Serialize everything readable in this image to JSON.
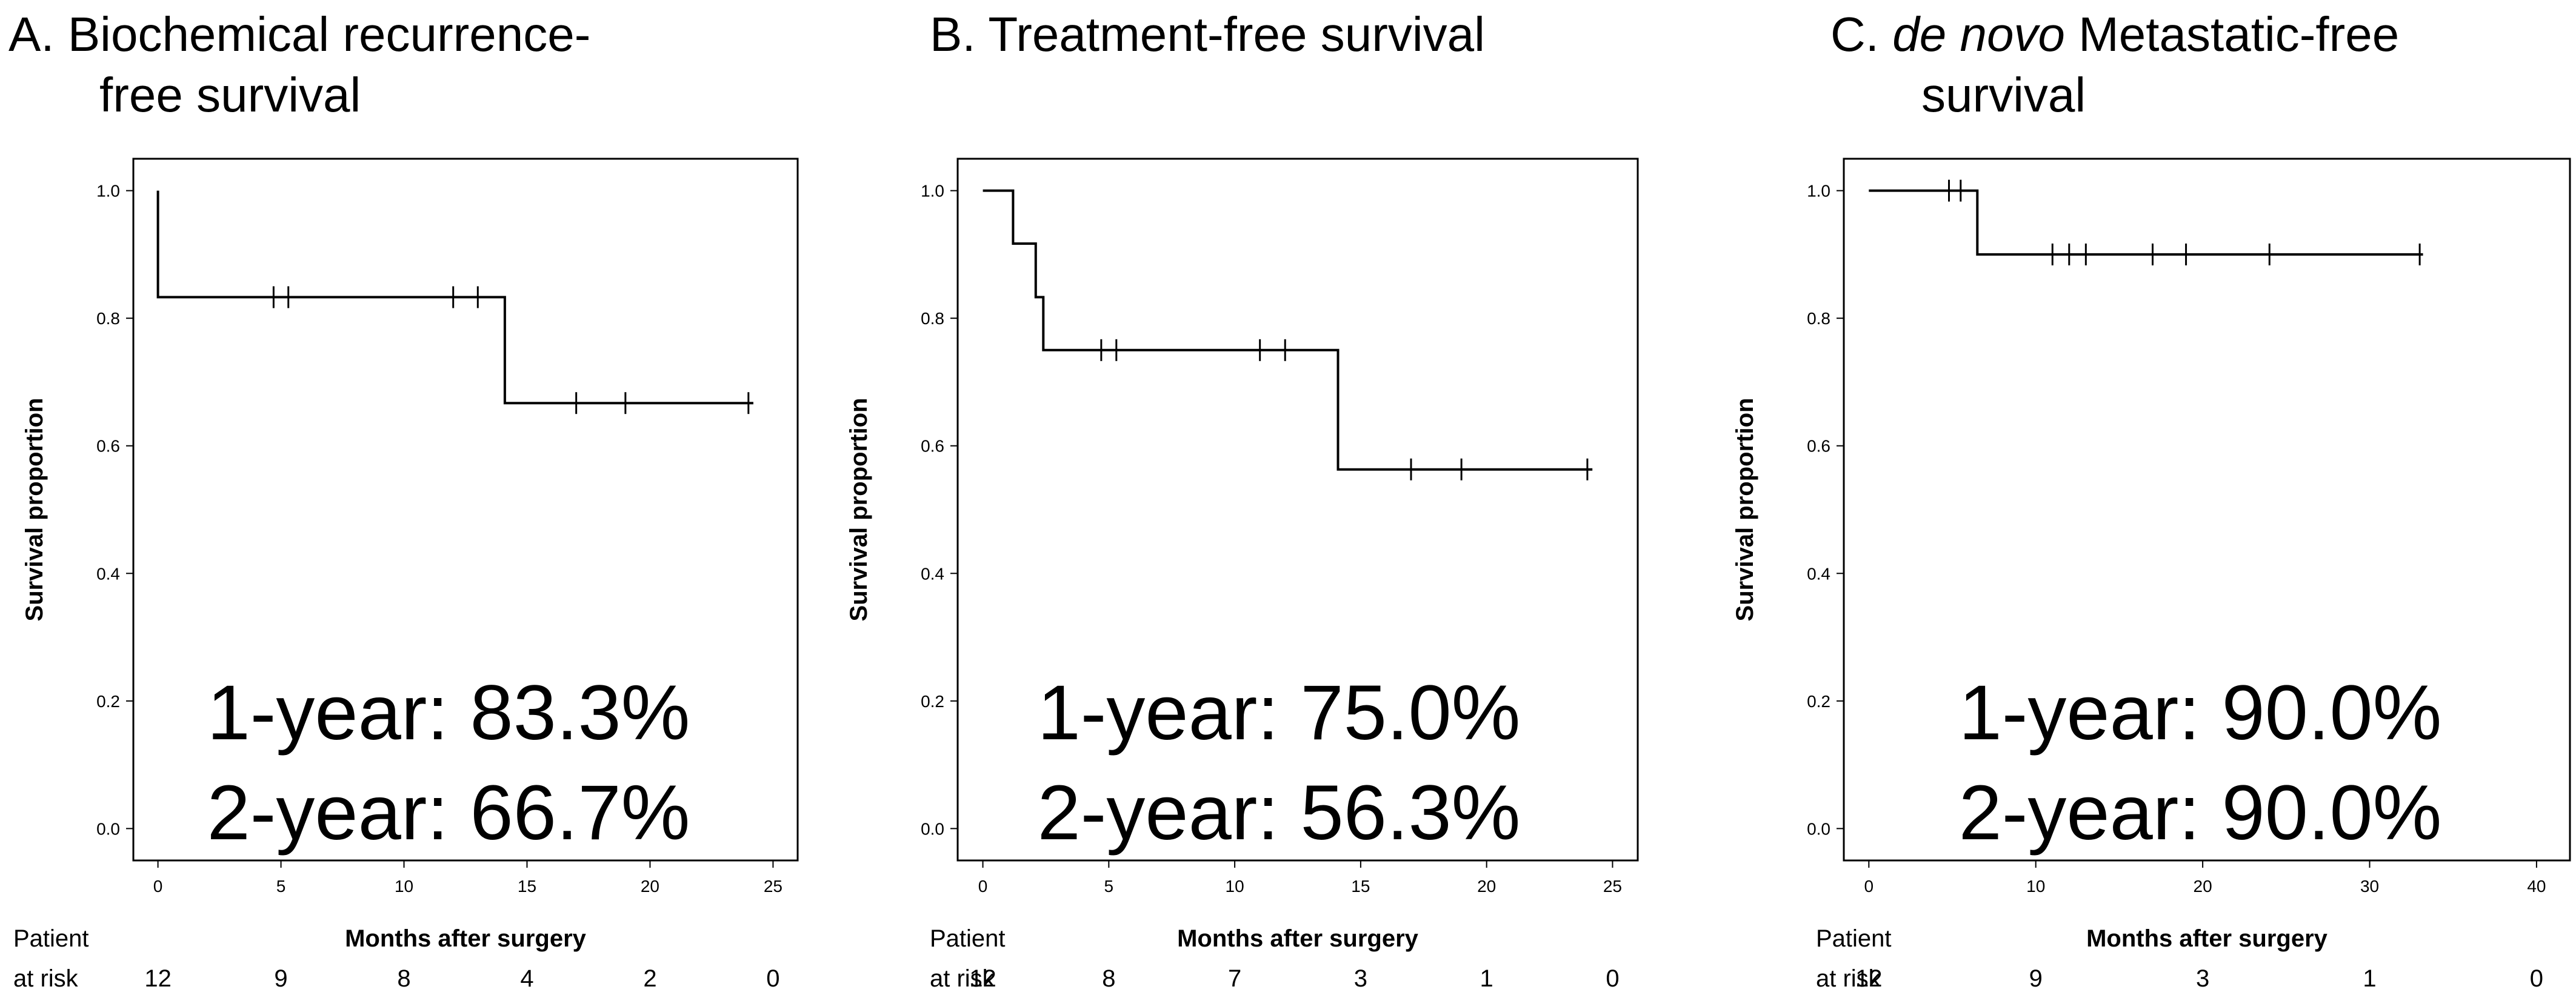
{
  "chart_data": [
    {
      "type": "line",
      "subtype": "kaplan-meier",
      "panel_label": "A.",
      "title_lines": [
        "Biochemical recurrence-",
        "free survival"
      ],
      "title_italic": "",
      "ylabel": "Survival proportion",
      "xlabel": "Months after surgery",
      "xlim": [
        -1,
        26
      ],
      "ylim": [
        -0.05,
        1.05
      ],
      "xticks": [
        0,
        5,
        10,
        15,
        20,
        25
      ],
      "xtick_labels": [
        "0",
        "5",
        "10",
        "15",
        "20",
        "25"
      ],
      "yticks": [
        0,
        0.2,
        0.4,
        0.6,
        0.8,
        1.0
      ],
      "ytick_labels": [
        "0.0",
        "0.2",
        "0.4",
        "0.6",
        "0.8",
        "1.0"
      ],
      "steps": [
        {
          "x": 0,
          "y": 1.0
        },
        {
          "x": 0,
          "y": 0.833
        },
        {
          "x": 14.1,
          "y": 0.833
        },
        {
          "x": 14.1,
          "y": 0.667
        },
        {
          "x": 24.2,
          "y": 0.667
        }
      ],
      "censored": [
        {
          "x": 4.7,
          "y": 0.833
        },
        {
          "x": 5.3,
          "y": 0.833
        },
        {
          "x": 12.0,
          "y": 0.833
        },
        {
          "x": 13.0,
          "y": 0.833
        },
        {
          "x": 17.0,
          "y": 0.667
        },
        {
          "x": 19.0,
          "y": 0.667
        },
        {
          "x": 24.0,
          "y": 0.667
        }
      ],
      "annotations": [
        "1-year: 83.3%",
        "2-year: 66.7%"
      ],
      "risk_header": [
        "Patient",
        "at risk"
      ],
      "at_risk": [
        "12",
        "9",
        "8",
        "4",
        "2",
        "0"
      ]
    },
    {
      "type": "line",
      "subtype": "kaplan-meier",
      "panel_label": "B.",
      "title_lines": [
        "Treatment-free  survival"
      ],
      "title_italic": "",
      "ylabel": "Survival proportion",
      "xlabel": "Months after surgery",
      "xlim": [
        -1,
        26
      ],
      "ylim": [
        -0.05,
        1.05
      ],
      "xticks": [
        0,
        5,
        10,
        15,
        20,
        25
      ],
      "xtick_labels": [
        "0",
        "5",
        "10",
        "15",
        "20",
        "25"
      ],
      "yticks": [
        0,
        0.2,
        0.4,
        0.6,
        0.8,
        1.0
      ],
      "ytick_labels": [
        "0.0",
        "0.2",
        "0.4",
        "0.6",
        "0.8",
        "1.0"
      ],
      "steps": [
        {
          "x": 0,
          "y": 1.0
        },
        {
          "x": 1.2,
          "y": 1.0
        },
        {
          "x": 1.2,
          "y": 0.917
        },
        {
          "x": 2.1,
          "y": 0.917
        },
        {
          "x": 2.1,
          "y": 0.833
        },
        {
          "x": 2.4,
          "y": 0.833
        },
        {
          "x": 2.4,
          "y": 0.75
        },
        {
          "x": 14.1,
          "y": 0.75
        },
        {
          "x": 14.1,
          "y": 0.563
        },
        {
          "x": 24.2,
          "y": 0.563
        }
      ],
      "censored": [
        {
          "x": 4.7,
          "y": 0.75
        },
        {
          "x": 5.3,
          "y": 0.75
        },
        {
          "x": 11.0,
          "y": 0.75
        },
        {
          "x": 12.0,
          "y": 0.75
        },
        {
          "x": 17.0,
          "y": 0.563
        },
        {
          "x": 19.0,
          "y": 0.563
        },
        {
          "x": 24.0,
          "y": 0.563
        }
      ],
      "annotations": [
        "1-year: 75.0%",
        "2-year: 56.3%"
      ],
      "risk_header": [
        "Patient",
        "at risk"
      ],
      "at_risk": [
        "12",
        "8",
        "7",
        "3",
        "1",
        "0"
      ]
    },
    {
      "type": "line",
      "subtype": "kaplan-meier",
      "panel_label": "C.",
      "title_lines": [
        " Metastatic-free",
        "survival"
      ],
      "title_italic": "de novo",
      "ylabel": "Survival proportion",
      "xlabel": "Months after surgery",
      "xlim": [
        -1.5,
        42
      ],
      "ylim": [
        -0.05,
        1.05
      ],
      "xticks": [
        0,
        10,
        20,
        30,
        40
      ],
      "xtick_labels": [
        "0",
        "10",
        "20",
        "30",
        "40"
      ],
      "yticks": [
        0,
        0.2,
        0.4,
        0.6,
        0.8,
        1.0
      ],
      "ytick_labels": [
        "0.0",
        "0.2",
        "0.4",
        "0.6",
        "0.8",
        "1.0"
      ],
      "steps": [
        {
          "x": 0,
          "y": 1.0
        },
        {
          "x": 6.5,
          "y": 1.0
        },
        {
          "x": 6.5,
          "y": 0.9
        },
        {
          "x": 33.2,
          "y": 0.9
        }
      ],
      "censored": [
        {
          "x": 4.8,
          "y": 1.0
        },
        {
          "x": 5.5,
          "y": 1.0
        },
        {
          "x": 11.0,
          "y": 0.9
        },
        {
          "x": 12.0,
          "y": 0.9
        },
        {
          "x": 13.0,
          "y": 0.9
        },
        {
          "x": 17.0,
          "y": 0.9
        },
        {
          "x": 19.0,
          "y": 0.9
        },
        {
          "x": 24.0,
          "y": 0.9
        },
        {
          "x": 33.0,
          "y": 0.9
        }
      ],
      "annotations": [
        "1-year: 90.0%",
        "2-year: 90.0%"
      ],
      "risk_header": [
        "Patient",
        "at risk"
      ],
      "at_risk": [
        "12",
        "9",
        "3",
        "1",
        "0"
      ]
    }
  ]
}
